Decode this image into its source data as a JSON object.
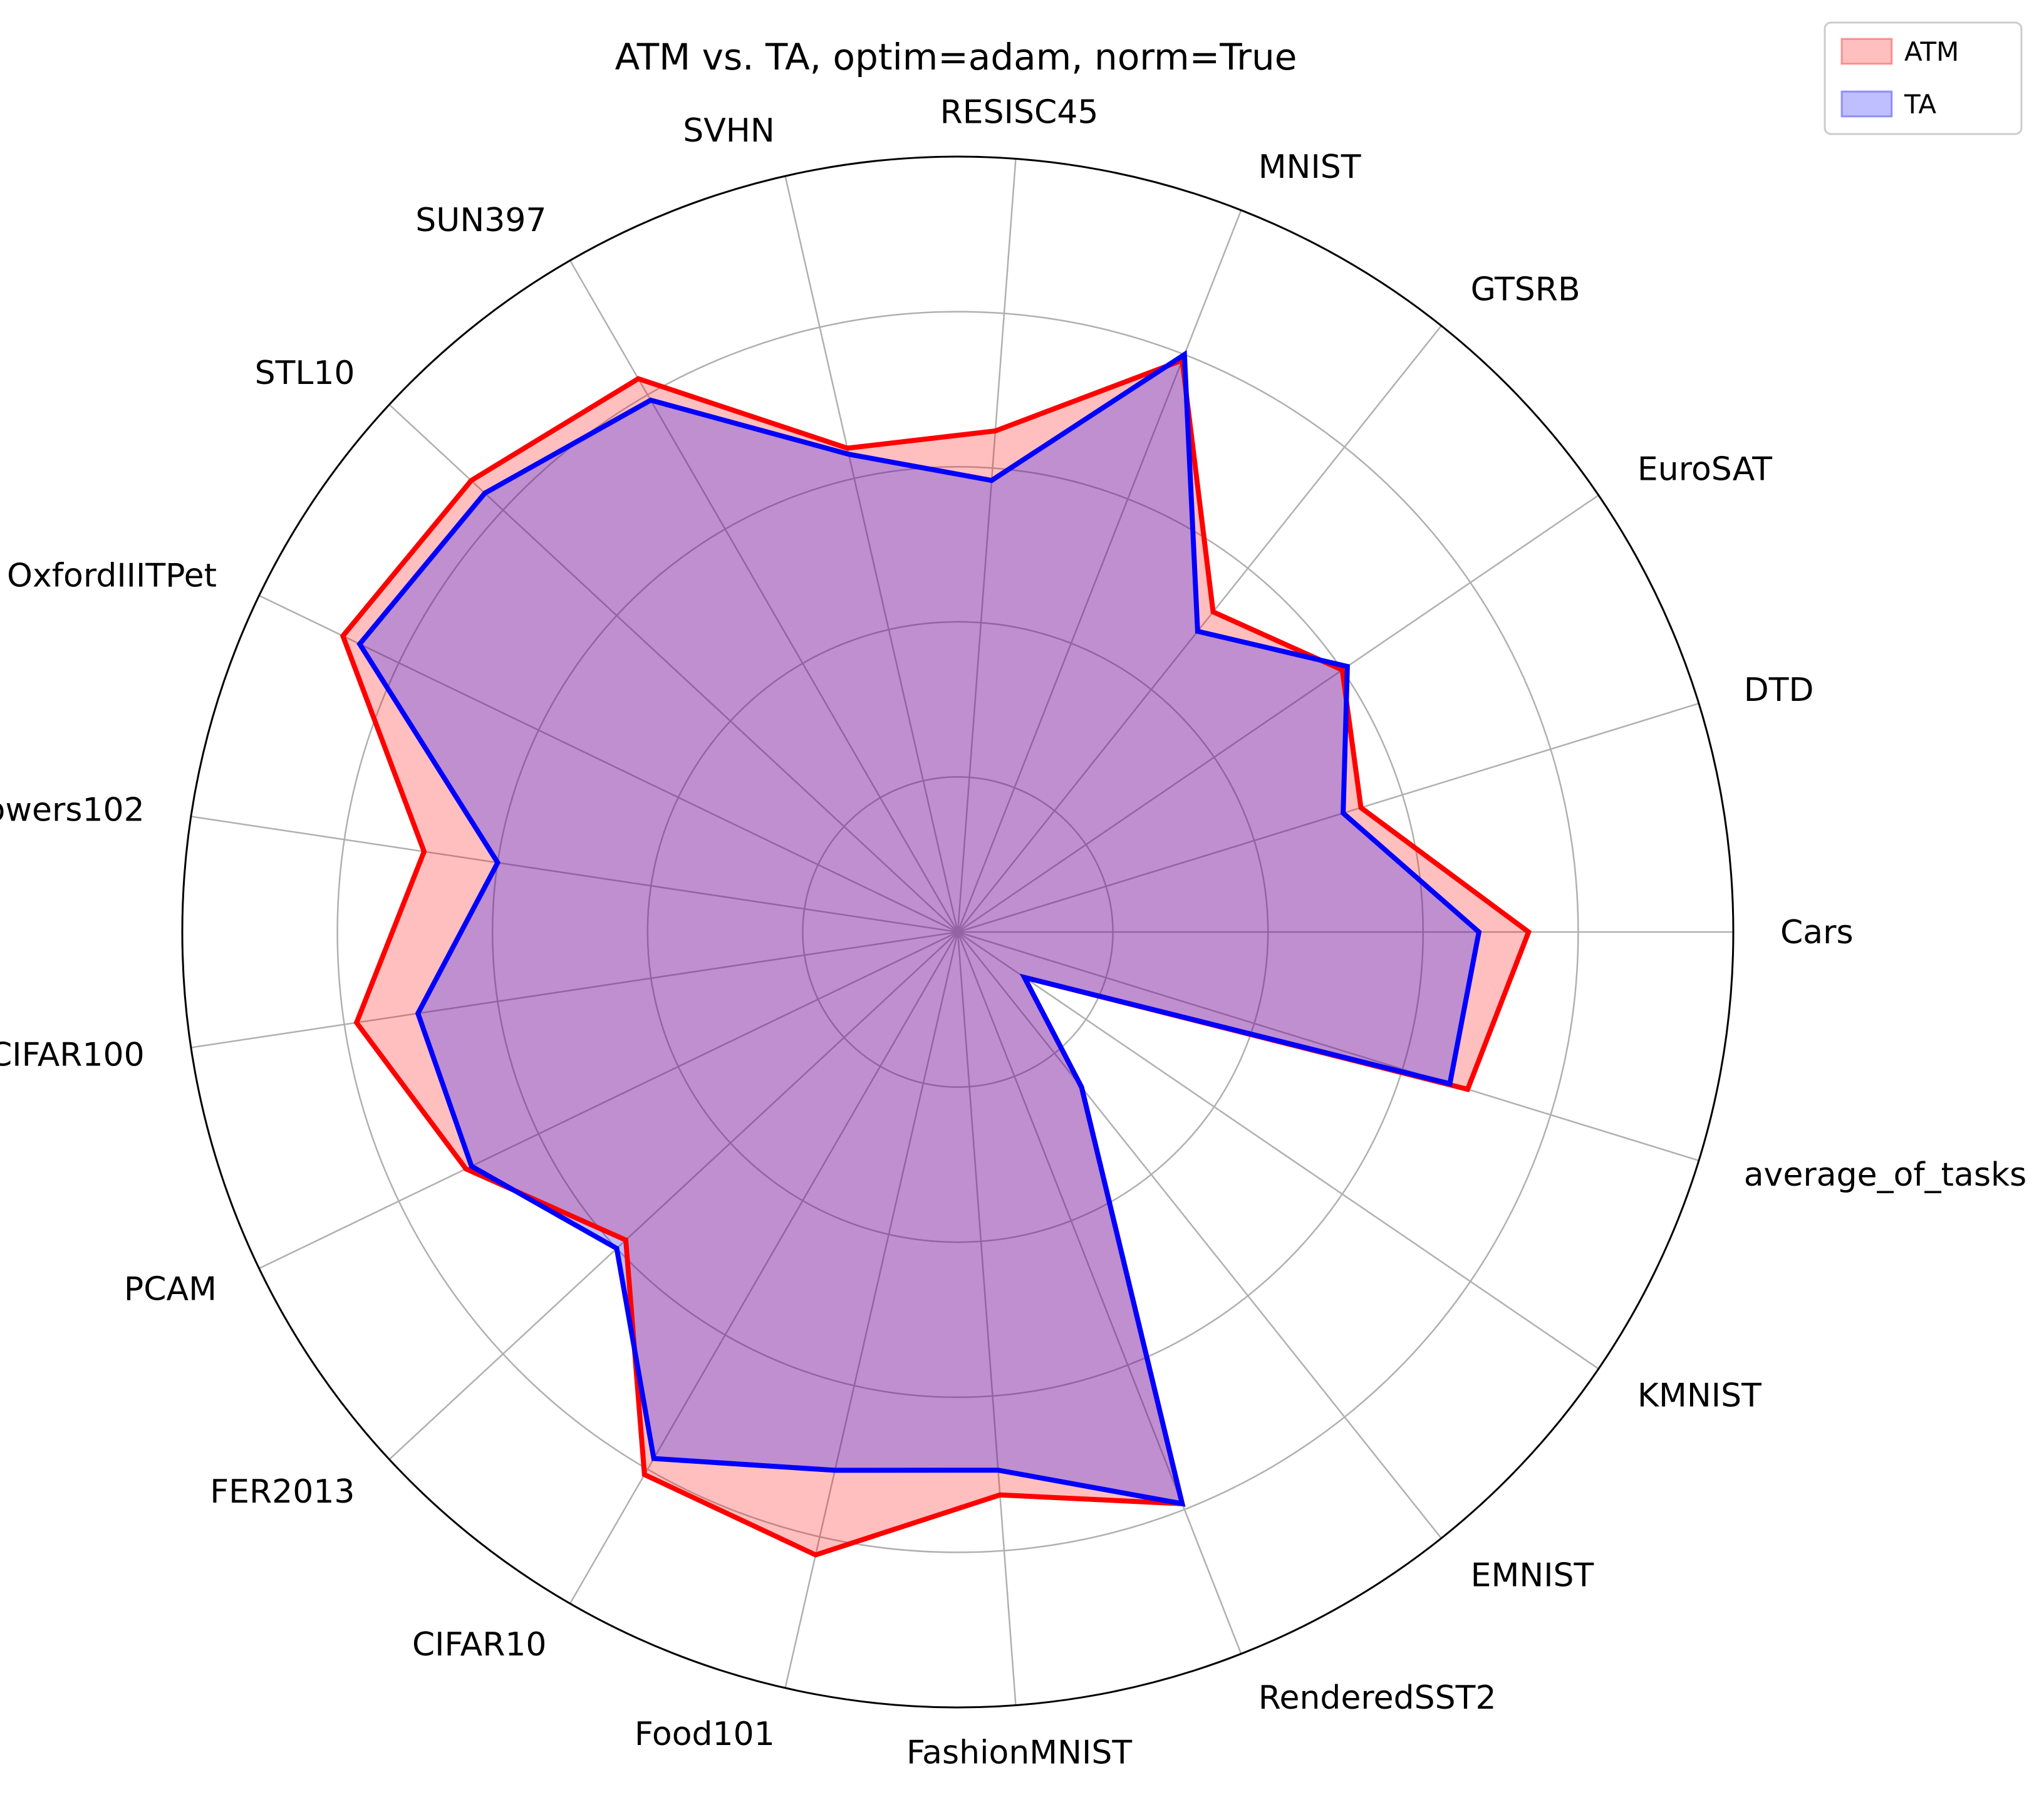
{
  "chart_data": {
    "type": "radar",
    "title": "ATM vs. TA, optim=adam, norm=True",
    "categories": [
      "Cars",
      "DTD",
      "EuroSAT",
      "GTSRB",
      "MNIST",
      "RESISC45",
      "SVHN",
      "SUN397",
      "STL10",
      "OxfordIIITPet",
      "Flowers102",
      "CIFAR100",
      "PCAM",
      "FER2013",
      "CIFAR10",
      "Food101",
      "FashionMNIST",
      "RenderedSST2",
      "EMNIST",
      "KMNIST",
      "average_of_tasks"
    ],
    "series": [
      {
        "name": "ATM",
        "values": [
          0.92,
          0.68,
          0.75,
          0.66,
          0.99,
          0.81,
          0.8,
          1.03,
          1.07,
          1.1,
          0.87,
          0.98,
          0.88,
          0.73,
          1.01,
          1.03,
          0.91,
          0.99,
          0.32,
          0.13,
          0.86
        ],
        "line_color": "#ff0000",
        "fill_color": "#ff0000"
      },
      {
        "name": "TA",
        "values": [
          0.84,
          0.65,
          0.76,
          0.62,
          1.0,
          0.73,
          0.79,
          0.99,
          1.04,
          1.07,
          0.75,
          0.88,
          0.87,
          0.75,
          0.98,
          0.89,
          0.87,
          0.99,
          0.32,
          0.13,
          0.83
        ],
        "line_color": "#0000ff",
        "fill_color": "#0000ff"
      }
    ],
    "rlim": [
      0,
      1.25
    ],
    "grid": true,
    "legend_position": "top-right"
  }
}
